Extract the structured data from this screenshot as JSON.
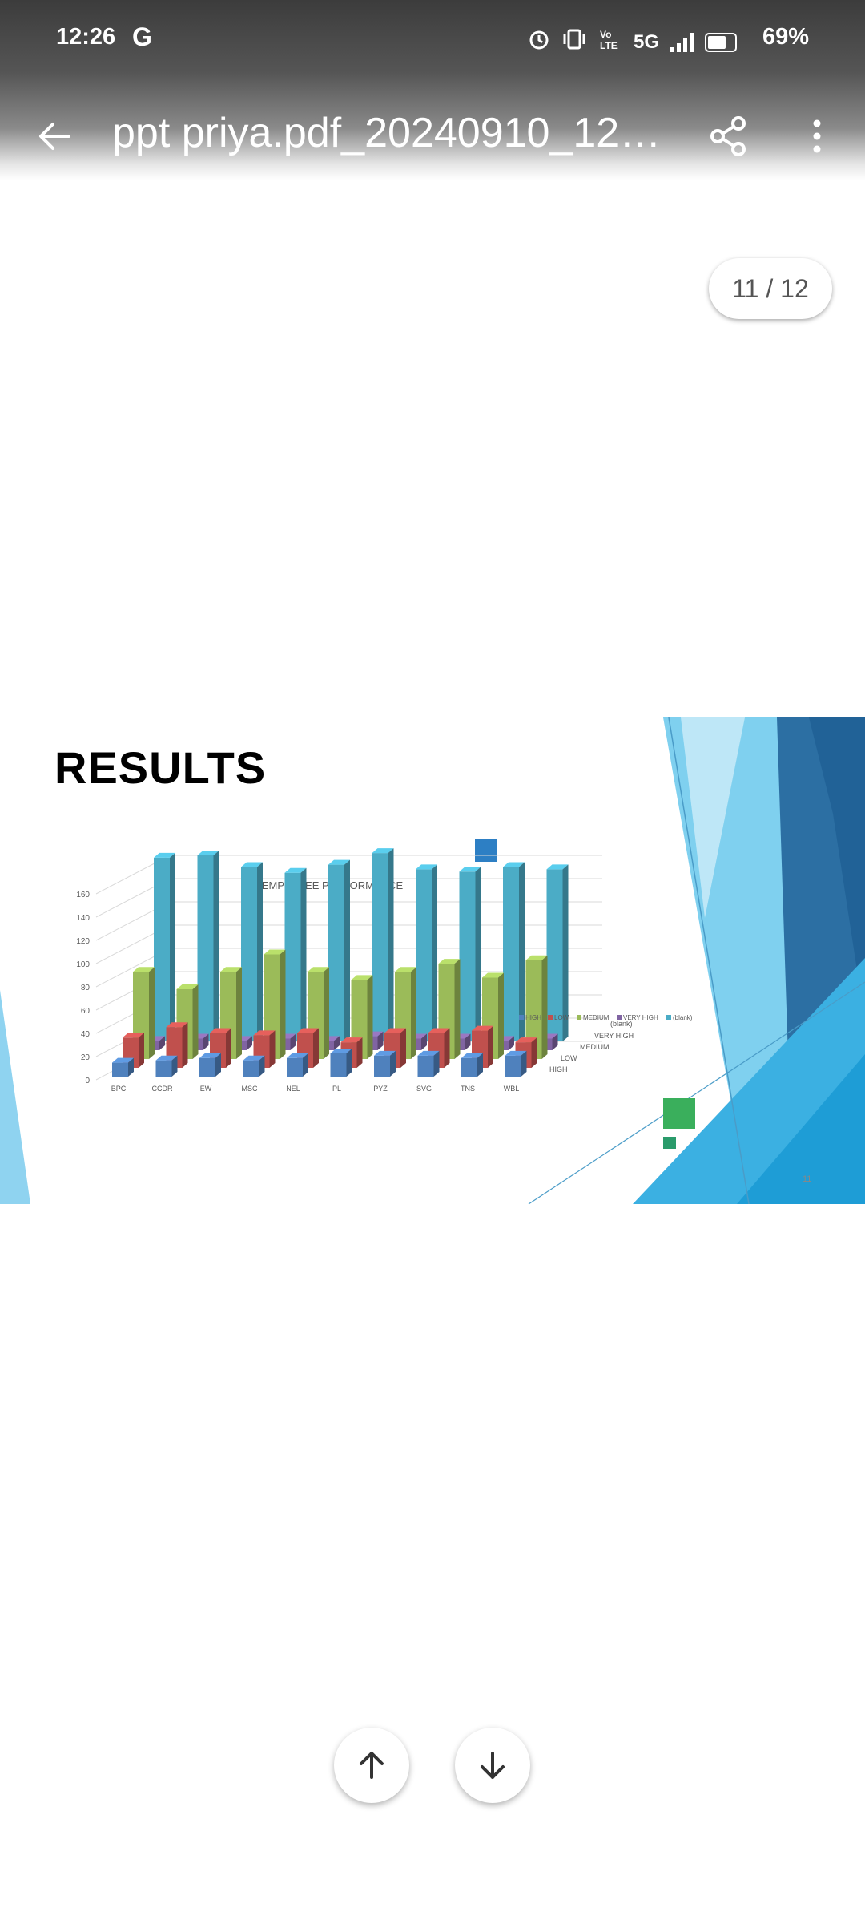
{
  "status_bar": {
    "time": "12:26",
    "carrier_letter": "G",
    "network": "5G",
    "battery": "69%",
    "icons": [
      "alarm-icon",
      "vibrate-icon",
      "volte-icon",
      "signal-icon",
      "battery-icon"
    ]
  },
  "app_bar": {
    "title": "ppt priya.pdf_20240910_122...",
    "back_icon": "back-arrow-icon",
    "share_icon": "share-icon",
    "menu_icon": "more-vert-icon"
  },
  "page_indicator": "11 / 12",
  "slide": {
    "title": "RESULTS",
    "page_number": "11",
    "accent_colors": [
      "#2d7fc4",
      "#41b6e6",
      "#1f6fa6",
      "#3aaf5c"
    ]
  },
  "chart_data": {
    "type": "bar",
    "title": "EMPLOYEE PERFORMANCE",
    "categories": [
      "BPC",
      "CCDR",
      "EW",
      "MSC",
      "NEL",
      "PL",
      "PYZ",
      "SVG",
      "TNS",
      "WBL"
    ],
    "depth_labels": [
      "HIGH",
      "LOW",
      "MEDIUM",
      "VERY HIGH",
      "(blank)"
    ],
    "y_ticks": [
      0,
      20,
      40,
      60,
      80,
      100,
      120,
      140,
      160
    ],
    "ylim": [
      0,
      160
    ],
    "legend": [
      "HIGH",
      "LOW",
      "MEDIUM",
      "VERY HIGH",
      "(blank)"
    ],
    "legend_position": "right",
    "grid": true,
    "series": [
      {
        "name": "HIGH",
        "color": "#4f81bd",
        "values": [
          12,
          14,
          16,
          14,
          16,
          20,
          18,
          18,
          16,
          18
        ]
      },
      {
        "name": "LOW",
        "color": "#c0504d",
        "values": [
          26,
          35,
          30,
          28,
          30,
          22,
          30,
          30,
          32,
          22
        ]
      },
      {
        "name": "MEDIUM",
        "color": "#9bbb59",
        "values": [
          75,
          60,
          75,
          90,
          75,
          68,
          75,
          82,
          70,
          85
        ]
      },
      {
        "name": "VERY HIGH",
        "color": "#8064a2",
        "values": [
          8,
          10,
          8,
          10,
          8,
          12,
          10,
          10,
          8,
          10
        ]
      },
      {
        "name": "(blank)",
        "color": "#4bacc6",
        "values": [
          158,
          160,
          150,
          145,
          152,
          162,
          148,
          146,
          150,
          148
        ]
      }
    ]
  },
  "nav": {
    "up_icon": "arrow-up-icon",
    "down_icon": "arrow-down-icon"
  }
}
